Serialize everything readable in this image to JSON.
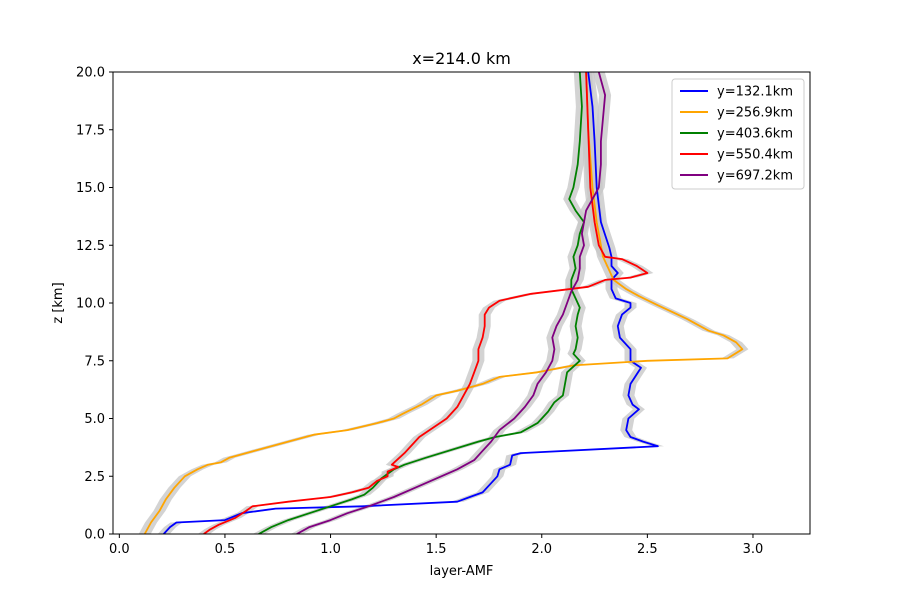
{
  "chart_data": {
    "type": "line",
    "title": "x=214.0 km",
    "xlabel": "layer-AMF",
    "ylabel": "z [km]",
    "xlim": [
      -0.03,
      3.27
    ],
    "ylim": [
      0,
      20
    ],
    "xticks": [
      0.0,
      0.5,
      1.0,
      1.5,
      2.0,
      2.5,
      3.0
    ],
    "xtick_labels": [
      "0.0",
      "0.5",
      "1.0",
      "1.5",
      "2.0",
      "2.5",
      "3.0"
    ],
    "yticks": [
      0.0,
      2.5,
      5.0,
      7.5,
      10.0,
      12.5,
      15.0,
      17.5,
      20.0
    ],
    "ytick_labels": [
      "0.0",
      "2.5",
      "5.0",
      "7.5",
      "10.0",
      "12.5",
      "15.0",
      "17.5",
      "20.0"
    ],
    "grid": false,
    "legend_position": "top-right",
    "band_color": "#c8c8c8",
    "series": [
      {
        "name": "y=132.1km",
        "color": "#0000ff",
        "x": [
          0.21,
          0.24,
          0.27,
          0.5,
          0.58,
          0.74,
          1.15,
          1.6,
          1.66,
          1.72,
          1.76,
          1.79,
          1.8,
          1.85,
          1.86,
          1.9,
          2.55,
          2.48,
          2.42,
          2.4,
          2.41,
          2.46,
          2.43,
          2.41,
          2.42,
          2.47,
          2.42,
          2.42,
          2.37,
          2.36,
          2.38,
          2.42,
          2.42,
          2.35,
          2.33,
          2.33,
          2.36,
          2.33,
          2.33,
          2.32,
          2.28,
          2.26,
          2.25,
          2.24,
          2.22
        ],
        "y": [
          0.0,
          0.3,
          0.5,
          0.6,
          0.9,
          1.1,
          1.2,
          1.4,
          1.6,
          1.8,
          2.2,
          2.5,
          2.8,
          3.0,
          3.4,
          3.5,
          3.8,
          4.0,
          4.2,
          4.5,
          5.0,
          5.4,
          5.6,
          6.0,
          6.5,
          7.2,
          7.5,
          8.0,
          8.5,
          9.0,
          9.5,
          9.8,
          10.0,
          10.2,
          10.6,
          11.0,
          11.3,
          11.6,
          12.0,
          12.4,
          13.5,
          15.0,
          17.0,
          18.5,
          20.0
        ]
      },
      {
        "name": "y=256.9km",
        "color": "#ffa500",
        "x": [
          0.12,
          0.15,
          0.19,
          0.22,
          0.26,
          0.31,
          0.37,
          0.42,
          0.48,
          0.52,
          0.6,
          0.68,
          0.8,
          0.92,
          1.08,
          1.22,
          1.3,
          1.34,
          1.43,
          1.5,
          1.6,
          1.72,
          1.8,
          1.98,
          2.15,
          2.5,
          2.88,
          2.95,
          2.92,
          2.86,
          2.79,
          2.73,
          2.69,
          2.62,
          2.55,
          2.46,
          2.4,
          2.34,
          2.29,
          2.26,
          2.24,
          2.22,
          2.21
        ],
        "y": [
          0.0,
          0.5,
          1.0,
          1.5,
          2.0,
          2.5,
          2.8,
          3.0,
          3.1,
          3.3,
          3.5,
          3.7,
          4.0,
          4.3,
          4.5,
          4.8,
          5.0,
          5.2,
          5.6,
          6.0,
          6.2,
          6.5,
          6.8,
          7.0,
          7.3,
          7.5,
          7.6,
          8.0,
          8.3,
          8.6,
          8.8,
          9.1,
          9.3,
          9.6,
          9.9,
          10.3,
          10.6,
          11.0,
          12.0,
          13.5,
          15.0,
          17.5,
          20.0
        ]
      },
      {
        "name": "y=403.6km",
        "color": "#008000",
        "x": [
          0.66,
          0.72,
          0.8,
          0.9,
          1.0,
          1.1,
          1.16,
          1.2,
          1.24,
          1.27,
          1.3,
          1.35,
          1.45,
          1.7,
          1.78,
          1.9,
          1.98,
          2.0,
          2.03,
          2.06,
          2.1,
          2.11,
          2.12,
          2.18,
          2.15,
          2.16,
          2.17,
          2.16,
          2.17,
          2.18,
          2.16,
          2.14,
          2.14,
          2.16,
          2.15,
          2.17,
          2.18,
          2.2,
          2.16,
          2.13,
          2.15,
          2.17,
          2.18,
          2.19,
          2.18
        ],
        "y": [
          0.0,
          0.3,
          0.6,
          0.9,
          1.2,
          1.5,
          1.7,
          2.0,
          2.4,
          2.6,
          2.8,
          3.0,
          3.3,
          4.0,
          4.2,
          4.4,
          4.8,
          5.0,
          5.3,
          5.7,
          6.0,
          6.5,
          7.0,
          7.5,
          7.8,
          8.0,
          8.5,
          9.0,
          9.5,
          9.8,
          10.2,
          10.6,
          11.0,
          11.5,
          12.0,
          12.5,
          13.0,
          13.5,
          14.0,
          14.5,
          15.0,
          16.0,
          17.0,
          18.5,
          20.0
        ]
      },
      {
        "name": "y=550.4km",
        "color": "#ff0000",
        "x": [
          0.4,
          0.43,
          0.47,
          0.55,
          0.6,
          0.63,
          0.8,
          1.0,
          1.1,
          1.18,
          1.22,
          1.27,
          1.27,
          1.32,
          1.29,
          1.35,
          1.42,
          1.55,
          1.6,
          1.63,
          1.66,
          1.68,
          1.7,
          1.7,
          1.72,
          1.73,
          1.73,
          1.75,
          1.8,
          1.95,
          2.22,
          2.3,
          2.42,
          2.5,
          2.45,
          2.38,
          2.3,
          2.27,
          2.25,
          2.23,
          2.22,
          2.21
        ],
        "y": [
          0.0,
          0.2,
          0.4,
          0.7,
          1.0,
          1.2,
          1.4,
          1.6,
          1.8,
          2.0,
          2.3,
          2.5,
          2.7,
          2.9,
          3.0,
          3.5,
          4.2,
          5.0,
          5.5,
          6.0,
          6.5,
          7.0,
          7.5,
          8.0,
          8.5,
          9.0,
          9.5,
          9.8,
          10.1,
          10.4,
          10.7,
          11.0,
          11.1,
          11.3,
          11.6,
          11.9,
          12.0,
          12.5,
          13.5,
          15.0,
          17.5,
          20.0
        ]
      },
      {
        "name": "y=697.2km",
        "color": "#800080",
        "x": [
          0.84,
          0.9,
          1.0,
          1.08,
          1.18,
          1.24,
          1.3,
          1.4,
          1.5,
          1.6,
          1.68,
          1.72,
          1.76,
          1.8,
          1.87,
          1.92,
          1.96,
          1.98,
          2.02,
          2.05,
          2.06,
          2.05,
          2.07,
          2.1,
          2.12,
          2.14,
          2.17,
          2.18,
          2.18,
          2.2,
          2.19,
          2.2,
          2.21,
          2.24,
          2.27,
          2.28,
          2.28,
          2.29,
          2.3,
          2.27
        ],
        "y": [
          0.0,
          0.3,
          0.6,
          0.9,
          1.2,
          1.4,
          1.6,
          2.0,
          2.4,
          2.8,
          3.2,
          3.6,
          4.0,
          4.5,
          5.0,
          5.5,
          6.0,
          6.5,
          7.0,
          7.5,
          8.0,
          8.5,
          9.0,
          9.5,
          10.0,
          10.5,
          11.0,
          11.5,
          12.0,
          12.5,
          13.0,
          13.5,
          14.0,
          14.5,
          15.0,
          16.0,
          17.0,
          18.0,
          19.0,
          20.0
        ]
      }
    ]
  }
}
